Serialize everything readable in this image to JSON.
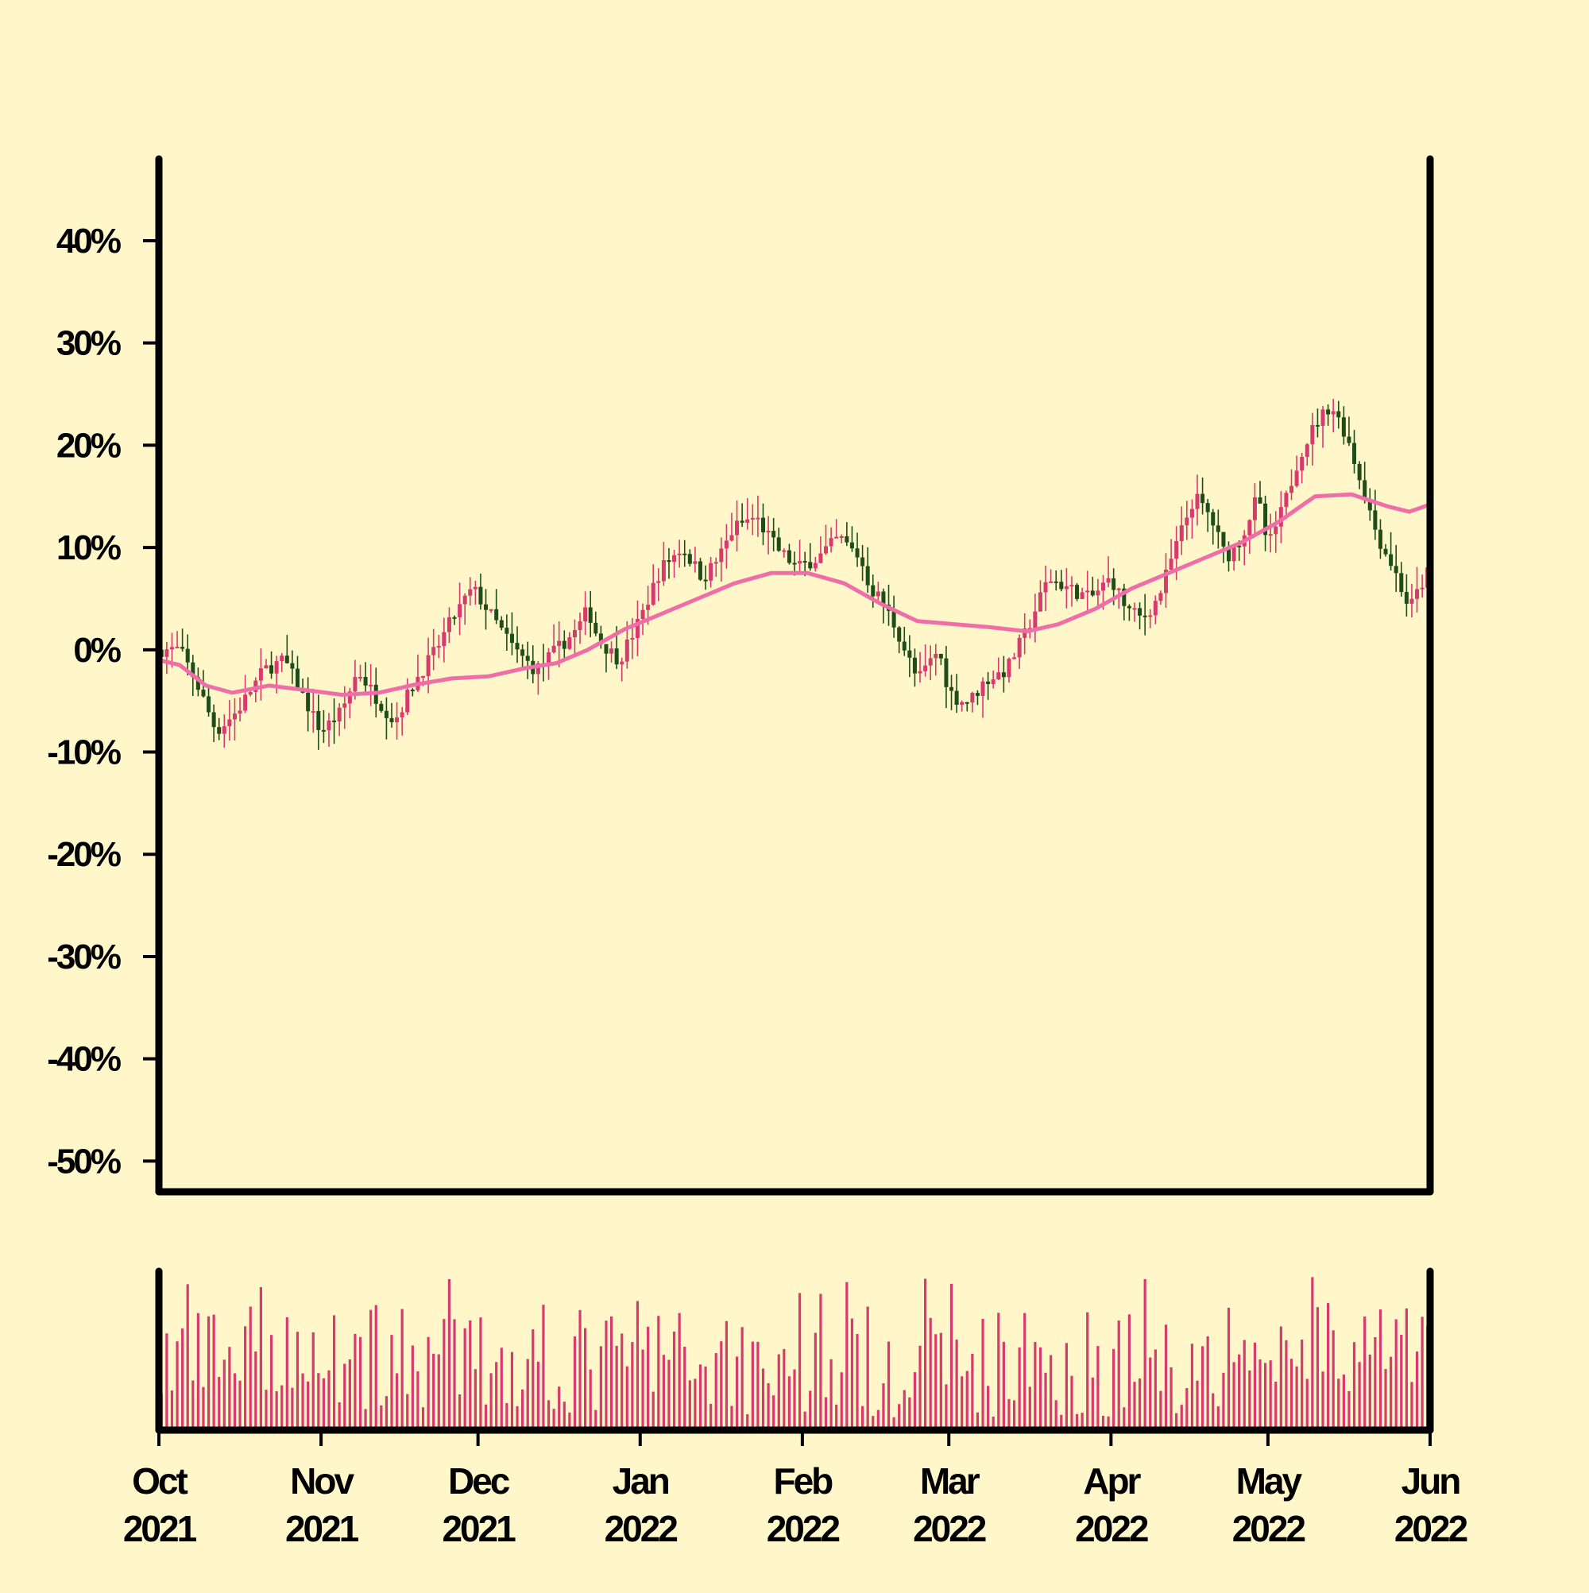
{
  "colors": {
    "background": "#fff7c9",
    "frame": "#000000",
    "up_candle": "#d63a6e",
    "down_candle": "#1f4d1a",
    "moving_average": "#f06ea8",
    "volume": "#d63a6e"
  },
  "chart_data": {
    "type": "candlestick",
    "title": "",
    "xlabel": "",
    "ylabel": "",
    "x_range": [
      "2021-10-01",
      "2022-06-01"
    ],
    "ylim": [
      -53,
      48
    ],
    "y_ticks": [
      40,
      30,
      20,
      10,
      0,
      -10,
      -20,
      -30,
      -40,
      -50
    ],
    "y_tick_labels": [
      "40%",
      "30%",
      "20%",
      "10%",
      "0%",
      "-10%",
      "-20%",
      "-30%",
      "-40%",
      "-50%"
    ],
    "x_ticks": [
      {
        "date": "2021-10-01",
        "month": "Oct",
        "year": "2021"
      },
      {
        "date": "2021-11-01",
        "month": "Nov",
        "year": "2021"
      },
      {
        "date": "2021-12-01",
        "month": "Dec",
        "year": "2021"
      },
      {
        "date": "2022-01-01",
        "month": "Jan",
        "year": "2022"
      },
      {
        "date": "2022-02-01",
        "month": "Feb",
        "year": "2022"
      },
      {
        "date": "2022-03-01",
        "month": "Mar",
        "year": "2022"
      },
      {
        "date": "2022-04-01",
        "month": "Apr",
        "year": "2022"
      },
      {
        "date": "2022-05-01",
        "month": "May",
        "year": "2022"
      },
      {
        "date": "2022-06-01",
        "month": "Jun",
        "year": "2022"
      }
    ],
    "close_path": [
      [
        "2021-10-01",
        0
      ],
      [
        "2021-10-05",
        0
      ],
      [
        "2021-10-08",
        -3
      ],
      [
        "2021-10-12",
        -8
      ],
      [
        "2021-10-16",
        -6
      ],
      [
        "2021-10-21",
        -2
      ],
      [
        "2021-10-25",
        -1
      ],
      [
        "2021-10-28",
        -4
      ],
      [
        "2021-11-01",
        -8
      ],
      [
        "2021-11-05",
        -6
      ],
      [
        "2021-11-08",
        -2
      ],
      [
        "2021-11-12",
        -5
      ],
      [
        "2021-11-15",
        -7
      ],
      [
        "2021-11-19",
        -3
      ],
      [
        "2021-11-23",
        0
      ],
      [
        "2021-11-26",
        3
      ],
      [
        "2021-11-30",
        6
      ],
      [
        "2021-12-04",
        3
      ],
      [
        "2021-12-08",
        0
      ],
      [
        "2021-12-12",
        -2
      ],
      [
        "2021-12-16",
        0
      ],
      [
        "2021-12-20",
        2
      ],
      [
        "2021-12-22",
        4
      ],
      [
        "2021-12-24",
        1
      ],
      [
        "2021-12-28",
        -1
      ],
      [
        "2022-01-01",
        3
      ],
      [
        "2022-01-05",
        8
      ],
      [
        "2022-01-09",
        10
      ],
      [
        "2022-01-13",
        7
      ],
      [
        "2022-01-16",
        9
      ],
      [
        "2022-01-19",
        12
      ],
      [
        "2022-01-23",
        13
      ],
      [
        "2022-01-27",
        10
      ],
      [
        "2022-01-31",
        8
      ],
      [
        "2022-02-04",
        9
      ],
      [
        "2022-02-08",
        11
      ],
      [
        "2022-02-12",
        9
      ],
      [
        "2022-02-14",
        6
      ],
      [
        "2022-02-16",
        5
      ],
      [
        "2022-02-19",
        2
      ],
      [
        "2022-02-23",
        -3
      ],
      [
        "2022-02-27",
        0
      ],
      [
        "2022-03-01",
        -4
      ],
      [
        "2022-03-03",
        -5
      ],
      [
        "2022-03-05",
        -5
      ],
      [
        "2022-03-08",
        -3
      ],
      [
        "2022-03-12",
        -2
      ],
      [
        "2022-03-16",
        2
      ],
      [
        "2022-03-20",
        7
      ],
      [
        "2022-03-24",
        6
      ],
      [
        "2022-03-28",
        5
      ],
      [
        "2022-04-01",
        7
      ],
      [
        "2022-04-04",
        4
      ],
      [
        "2022-04-07",
        3
      ],
      [
        "2022-04-10",
        5
      ],
      [
        "2022-04-14",
        11
      ],
      [
        "2022-04-17",
        15
      ],
      [
        "2022-04-20",
        13
      ],
      [
        "2022-04-23",
        9
      ],
      [
        "2022-04-26",
        11
      ],
      [
        "2022-04-29",
        15
      ],
      [
        "2022-05-01",
        10
      ],
      [
        "2022-05-04",
        14
      ],
      [
        "2022-05-07",
        19
      ],
      [
        "2022-05-10",
        22
      ],
      [
        "2022-05-13",
        24
      ],
      [
        "2022-05-16",
        21
      ],
      [
        "2022-05-19",
        16
      ],
      [
        "2022-05-22",
        11
      ],
      [
        "2022-05-25",
        8
      ],
      [
        "2022-05-28",
        4
      ],
      [
        "2022-05-31",
        7
      ],
      [
        "2022-06-01",
        8
      ]
    ],
    "moving_average_path": [
      [
        "2021-10-01",
        -1
      ],
      [
        "2021-10-05",
        -1.5
      ],
      [
        "2021-10-10",
        -3.5
      ],
      [
        "2021-10-15",
        -4.2
      ],
      [
        "2021-10-22",
        -3.5
      ],
      [
        "2021-10-30",
        -4
      ],
      [
        "2021-11-05",
        -4.4
      ],
      [
        "2021-11-12",
        -4.2
      ],
      [
        "2021-11-19",
        -3.4
      ],
      [
        "2021-11-26",
        -2.8
      ],
      [
        "2021-12-03",
        -2.6
      ],
      [
        "2021-12-10",
        -1.8
      ],
      [
        "2021-12-16",
        -1.3
      ],
      [
        "2021-12-22",
        0
      ],
      [
        "2021-12-29",
        2
      ],
      [
        "2022-01-05",
        3.5
      ],
      [
        "2022-01-12",
        5
      ],
      [
        "2022-01-19",
        6.5
      ],
      [
        "2022-01-26",
        7.5
      ],
      [
        "2022-02-02",
        7.5
      ],
      [
        "2022-02-09",
        6.5
      ],
      [
        "2022-02-16",
        4.5
      ],
      [
        "2022-02-23",
        2.8
      ],
      [
        "2022-03-02",
        2.5
      ],
      [
        "2022-03-09",
        2.2
      ],
      [
        "2022-03-16",
        1.8
      ],
      [
        "2022-03-22",
        2.5
      ],
      [
        "2022-03-29",
        4
      ],
      [
        "2022-04-05",
        6
      ],
      [
        "2022-04-12",
        7.5
      ],
      [
        "2022-04-19",
        9
      ],
      [
        "2022-04-26",
        10.5
      ],
      [
        "2022-05-03",
        12.5
      ],
      [
        "2022-05-10",
        15
      ],
      [
        "2022-05-17",
        15.2
      ],
      [
        "2022-05-24",
        14
      ],
      [
        "2022-05-28",
        13.5
      ],
      [
        "2022-06-01",
        14.2
      ]
    ],
    "volume_range": [
      0,
      100
    ]
  }
}
